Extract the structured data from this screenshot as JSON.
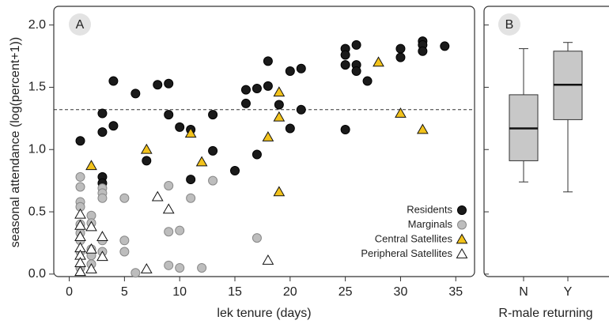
{
  "chart_data": [
    {
      "type": "scatter",
      "panel_label": "A",
      "xlabel": "lek tenure (days)",
      "ylabel": "seasonal attendance (log(percent+1))",
      "xlim": [
        -1.4,
        36.7
      ],
      "ylim": [
        -0.02,
        2.15
      ],
      "xticks": [
        0,
        5,
        10,
        15,
        20,
        25,
        30,
        35
      ],
      "yticks": [
        {
          "value": 0,
          "label": "0.0"
        },
        0.5,
        {
          "value": 1,
          "label": "1.0"
        },
        1.5,
        {
          "value": 2,
          "label": "2.0"
        }
      ],
      "hline": 1.32,
      "legend": "lower right",
      "series": [
        {
          "name": "Residents",
          "color": "#1a1a1a",
          "marker": "circle",
          "x": [
            1,
            3,
            3,
            3,
            3,
            4,
            4,
            6,
            7,
            8,
            9,
            9,
            10,
            11,
            11,
            13,
            13,
            15,
            16,
            16,
            17,
            17,
            18,
            18,
            19,
            20,
            20,
            21,
            21,
            25,
            25,
            25,
            25,
            26,
            26,
            26,
            27,
            30,
            30,
            32,
            32,
            32,
            34
          ],
          "values": [
            1.07,
            1.29,
            1.14,
            0.78,
            0.73,
            1.55,
            1.19,
            1.45,
            0.91,
            1.52,
            1.53,
            1.28,
            1.18,
            1.16,
            0.76,
            1.28,
            0.99,
            0.83,
            1.48,
            1.37,
            1.49,
            0.96,
            1.71,
            1.51,
            1.36,
            1.63,
            1.17,
            1.65,
            1.32,
            1.81,
            1.76,
            1.68,
            1.16,
            1.84,
            1.68,
            1.63,
            1.55,
            1.81,
            1.74,
            1.87,
            1.84,
            1.79,
            1.83
          ]
        },
        {
          "name": "Marginals",
          "color": "#bdbdbd",
          "marker": "circle",
          "x": [
            1,
            1,
            1,
            1,
            1,
            1,
            1,
            1,
            1,
            2,
            2,
            2,
            2,
            2,
            3,
            3,
            3,
            3,
            3,
            5,
            5,
            5,
            6,
            9,
            9,
            9,
            10,
            10,
            11,
            12,
            13,
            17
          ],
          "values": [
            0.78,
            0.7,
            0.58,
            0.54,
            0.4,
            0.33,
            0.27,
            0.18,
            0.05,
            0.47,
            0.41,
            0.2,
            0.15,
            0.08,
            0.69,
            0.65,
            0.61,
            0.27,
            0.18,
            0.61,
            0.27,
            0.18,
            0.01,
            0.71,
            0.34,
            0.07,
            0.35,
            0.05,
            0.61,
            0.05,
            0.75,
            0.29
          ]
        },
        {
          "name": "Central Satellites",
          "color": "#f2c21b",
          "marker": "triangle",
          "x": [
            2,
            7,
            11,
            12,
            18,
            19,
            19,
            19,
            28,
            30,
            32
          ],
          "values": [
            0.87,
            1.0,
            1.13,
            0.9,
            1.1,
            1.46,
            1.26,
            0.66,
            1.7,
            1.29,
            1.16
          ]
        },
        {
          "name": "Peripheral Satellites",
          "color": "#ffffff",
          "marker": "triangle",
          "x": [
            1,
            1,
            1,
            1,
            1,
            1,
            1,
            2,
            2,
            2,
            3,
            3,
            7,
            8,
            9,
            18
          ],
          "values": [
            0.48,
            0.39,
            0.3,
            0.21,
            0.15,
            0.09,
            0.02,
            0.38,
            0.2,
            0.04,
            0.3,
            0.14,
            0.04,
            0.62,
            0.52,
            0.11
          ]
        }
      ]
    },
    {
      "type": "box",
      "panel_label": "B",
      "xlabel": "R-male returning",
      "ylim": [
        -0.02,
        2.15
      ],
      "yticks": [
        0,
        0.5,
        1,
        1.5,
        2
      ],
      "ytick_labels": false,
      "color": "#c8c8c8",
      "categories": [
        "N",
        "Y"
      ],
      "boxes": [
        {
          "whislo": 0.74,
          "q1": 0.91,
          "med": 1.17,
          "q3": 1.44,
          "whishi": 1.81
        },
        {
          "whislo": 0.66,
          "q1": 1.24,
          "med": 1.52,
          "q3": 1.79,
          "whishi": 1.86
        }
      ]
    }
  ]
}
